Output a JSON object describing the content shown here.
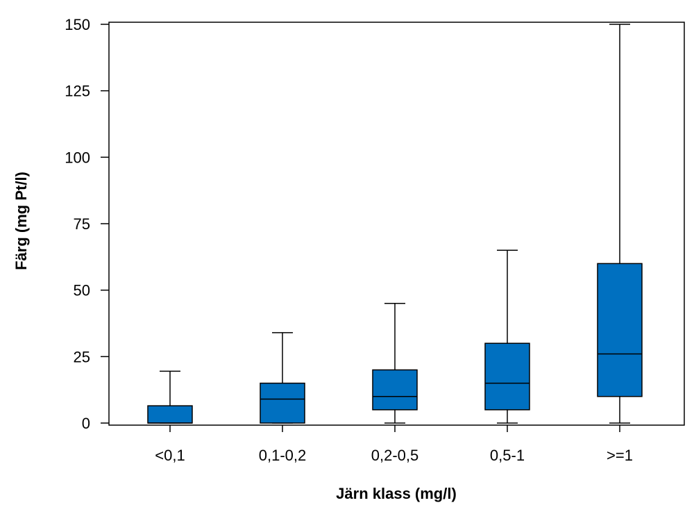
{
  "chart_data": {
    "type": "box",
    "xlabel": "Järn klass (mg/l)",
    "ylabel": "Färg (mg Pt/l)",
    "ylim": [
      0,
      150
    ],
    "yticks": [
      0,
      25,
      50,
      75,
      100,
      125,
      150
    ],
    "categories": [
      "<0,1",
      "0,1-0,2",
      "0,2-0,5",
      "0,5-1",
      ">=1"
    ],
    "boxes": [
      {
        "category": "<0,1",
        "whisker_low": 0,
        "q1": 0,
        "median": 0,
        "q3": 6.5,
        "whisker_high": 19.5
      },
      {
        "category": "0,1-0,2",
        "whisker_low": 0,
        "q1": 0,
        "median": 9,
        "q3": 15,
        "whisker_high": 34
      },
      {
        "category": "0,2-0,5",
        "whisker_low": 0,
        "q1": 5,
        "median": 10,
        "q3": 20,
        "whisker_high": 45
      },
      {
        "category": "0,5-1",
        "whisker_low": 0,
        "q1": 5,
        "median": 15,
        "q3": 30,
        "whisker_high": 65
      },
      {
        "category": ">=1",
        "whisker_low": 0,
        "q1": 10,
        "median": 26,
        "q3": 60,
        "whisker_high": 150
      }
    ],
    "box_color": "#0070C0",
    "grid": false,
    "legend": "none"
  }
}
